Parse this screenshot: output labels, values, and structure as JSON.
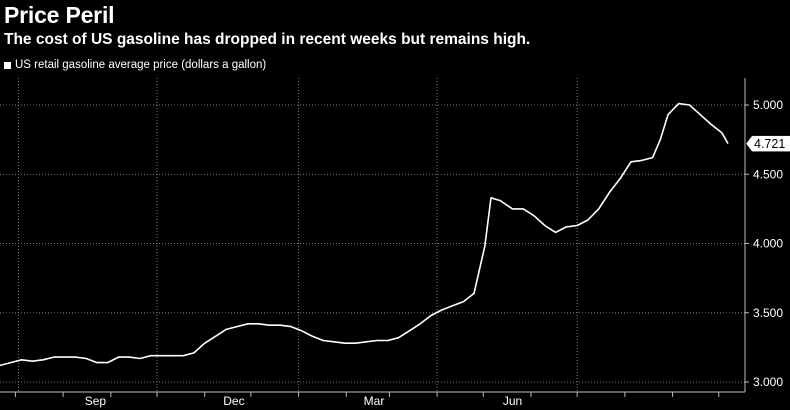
{
  "chart_data": {
    "type": "line",
    "title": "Price Peril",
    "subtitle": "The cost of US gasoline has dropped in recent weeks but remains high.",
    "series": [
      {
        "name": "US retail gasoline average price (dollars a gallon)",
        "color": "#ffffff",
        "points": [
          [
            "2021-06-21",
            3.12
          ],
          [
            "2021-06-28",
            3.14
          ],
          [
            "2021-07-05",
            3.16
          ],
          [
            "2021-07-12",
            3.15
          ],
          [
            "2021-07-19",
            3.16
          ],
          [
            "2021-07-26",
            3.18
          ],
          [
            "2021-08-02",
            3.18
          ],
          [
            "2021-08-09",
            3.18
          ],
          [
            "2021-08-16",
            3.17
          ],
          [
            "2021-08-23",
            3.14
          ],
          [
            "2021-08-30",
            3.14
          ],
          [
            "2021-09-06",
            3.18
          ],
          [
            "2021-09-13",
            3.18
          ],
          [
            "2021-09-20",
            3.17
          ],
          [
            "2021-09-27",
            3.19
          ],
          [
            "2021-10-04",
            3.19
          ],
          [
            "2021-10-11",
            3.19
          ],
          [
            "2021-10-18",
            3.19
          ],
          [
            "2021-10-25",
            3.21
          ],
          [
            "2021-11-01",
            3.28
          ],
          [
            "2021-11-08",
            3.33
          ],
          [
            "2021-11-15",
            3.38
          ],
          [
            "2021-11-22",
            3.4
          ],
          [
            "2021-11-29",
            3.42
          ],
          [
            "2021-12-06",
            3.42
          ],
          [
            "2021-12-13",
            3.41
          ],
          [
            "2021-12-20",
            3.41
          ],
          [
            "2021-12-27",
            3.4
          ],
          [
            "2022-01-03",
            3.37
          ],
          [
            "2022-01-10",
            3.33
          ],
          [
            "2022-01-17",
            3.3
          ],
          [
            "2022-01-24",
            3.29
          ],
          [
            "2022-01-31",
            3.28
          ],
          [
            "2022-02-07",
            3.28
          ],
          [
            "2022-02-14",
            3.29
          ],
          [
            "2022-02-21",
            3.3
          ],
          [
            "2022-02-28",
            3.3
          ],
          [
            "2022-03-07",
            3.32
          ],
          [
            "2022-03-14",
            3.37
          ],
          [
            "2022-03-21",
            3.42
          ],
          [
            "2022-03-28",
            3.48
          ],
          [
            "2022-04-04",
            3.52
          ],
          [
            "2022-04-11",
            3.55
          ],
          [
            "2022-04-18",
            3.58
          ],
          [
            "2022-04-25",
            3.64
          ],
          [
            "2022-05-02",
            3.98
          ],
          [
            "2022-05-06",
            4.33
          ],
          [
            "2022-05-12",
            4.31
          ],
          [
            "2022-05-20",
            4.25
          ],
          [
            "2022-05-27",
            4.25
          ],
          [
            "2022-06-03",
            4.2
          ],
          [
            "2022-06-10",
            4.13
          ],
          [
            "2022-06-17",
            4.08
          ],
          [
            "2022-06-24",
            4.12
          ],
          [
            "2022-07-01",
            4.13
          ],
          [
            "2022-07-08",
            4.17
          ],
          [
            "2022-07-15",
            4.25
          ],
          [
            "2022-07-22",
            4.37
          ],
          [
            "2022-07-29",
            4.47
          ],
          [
            "2022-08-05",
            4.59
          ],
          [
            "2022-08-12",
            4.6
          ],
          [
            "2022-08-19",
            4.62
          ],
          [
            "2022-08-24",
            4.75
          ],
          [
            "2022-08-29",
            4.93
          ],
          [
            "2022-09-05",
            5.01
          ],
          [
            "2022-09-12",
            5.0
          ],
          [
            "2022-09-19",
            4.93
          ],
          [
            "2022-09-26",
            4.86
          ],
          [
            "2022-10-03",
            4.8
          ],
          [
            "2022-10-07",
            4.721
          ]
        ]
      }
    ],
    "x_tick_labels": [
      "Sep",
      "Dec",
      "Mar",
      "Jun"
    ],
    "y_ticks": [
      "3.000",
      "3.500",
      "4.000",
      "4.500",
      "5.000"
    ],
    "ylim": [
      3.0,
      5.2
    ],
    "last_value_label": "4.721",
    "grid": true,
    "legend_position": "top-left"
  }
}
